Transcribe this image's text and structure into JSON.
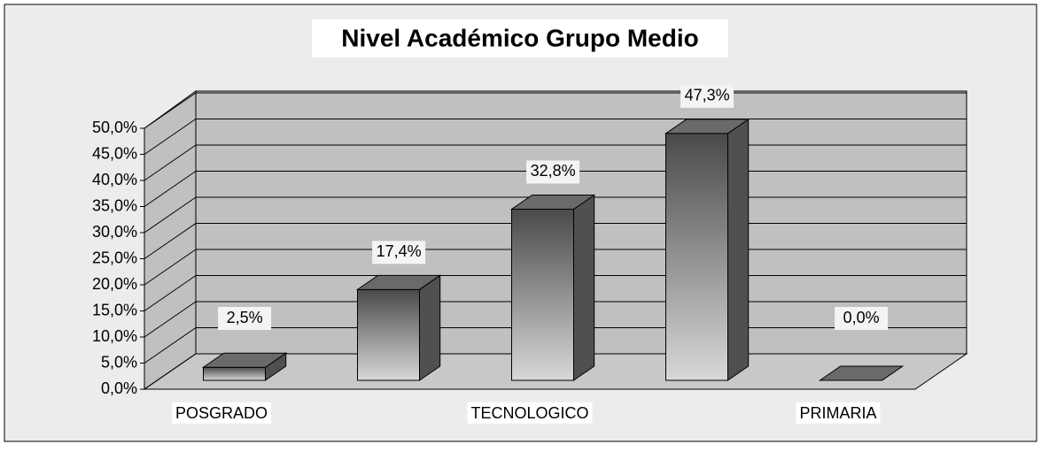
{
  "chart_data": {
    "type": "bar3d",
    "title": "Nivel Académico Grupo Medio",
    "categories": [
      "POSGRADO",
      null,
      "TECNOLOGICO",
      null,
      "PRIMARIA"
    ],
    "values": [
      2.5,
      17.4,
      32.8,
      47.3,
      0.0
    ],
    "value_labels": [
      "2,5%",
      "17,4%",
      "32,8%",
      "47,3%",
      "0,0%"
    ],
    "color": "#555555",
    "ylim": [
      0,
      50
    ],
    "yticks": [
      {
        "value": 0,
        "label": "0,0%"
      },
      {
        "value": 5,
        "label": "5,0%"
      },
      {
        "value": 10,
        "label": "10,0%"
      },
      {
        "value": 15,
        "label": "15,0%"
      },
      {
        "value": 20,
        "label": "20,0%"
      },
      {
        "value": 25,
        "label": "25,0%"
      },
      {
        "value": 30,
        "label": "30,0%"
      },
      {
        "value": 35,
        "label": "35,0%"
      },
      {
        "value": 40,
        "label": "40,0%"
      },
      {
        "value": 45,
        "label": "45,0%"
      },
      {
        "value": 50,
        "label": "50,0%"
      }
    ],
    "grid": true
  }
}
